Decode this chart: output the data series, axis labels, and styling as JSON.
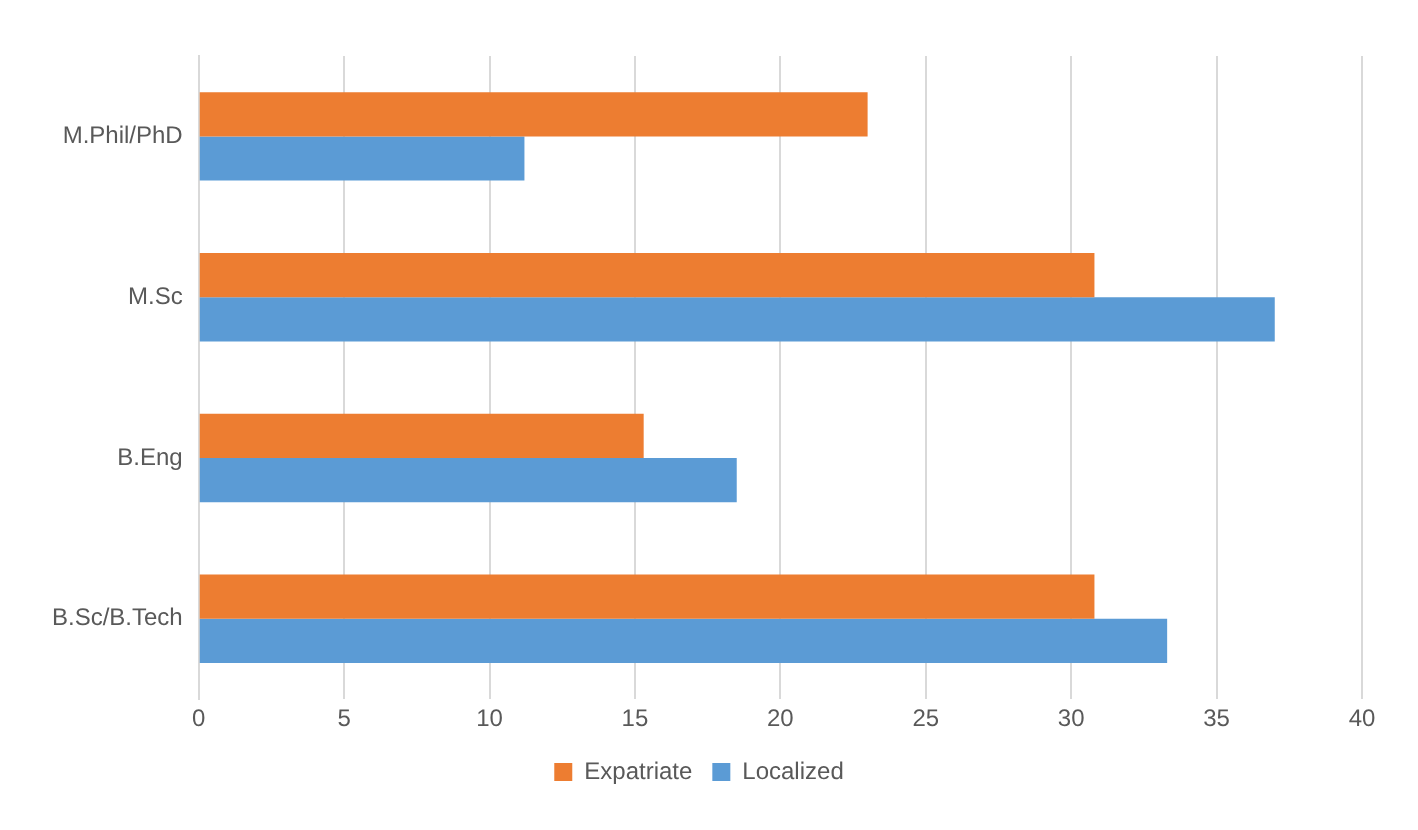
{
  "chart_data": {
    "type": "bar",
    "orientation": "horizontal",
    "categories": [
      "M.Phil/PhD",
      "M.Sc",
      "B.Eng",
      "B.Sc/B.Tech"
    ],
    "series": [
      {
        "name": "Expatriate",
        "color": "#ed7d31",
        "values": [
          23.0,
          30.8,
          15.3,
          30.8
        ]
      },
      {
        "name": "Localized",
        "color": "#5b9bd5",
        "values": [
          11.2,
          37.0,
          18.5,
          33.3
        ]
      }
    ],
    "xlim": [
      0,
      40
    ],
    "xticks": [
      0,
      5,
      10,
      15,
      20,
      25,
      30,
      35,
      40
    ],
    "grid": "x",
    "legend": "bottom"
  }
}
